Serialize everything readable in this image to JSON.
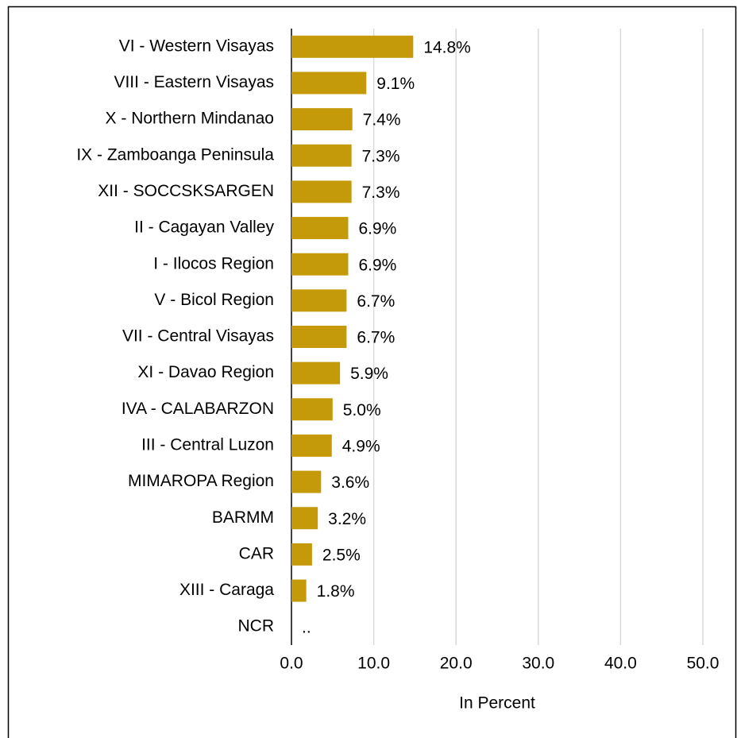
{
  "chart_data": {
    "type": "barh",
    "categories": [
      "VI - Western Visayas",
      "VIII - Eastern Visayas",
      "X - Northern Mindanao",
      "IX - Zamboanga Peninsula",
      "XII - SOCCSKSARGEN",
      "II - Cagayan Valley",
      "I - Ilocos Region",
      "V - Bicol Region",
      "VII - Central Visayas",
      "XI - Davao Region",
      "IVA - CALABARZON",
      "III - Central Luzon",
      "MIMAROPA Region",
      "BARMM",
      "CAR",
      "XIII - Caraga",
      "NCR"
    ],
    "values": [
      14.8,
      9.1,
      7.4,
      7.3,
      7.3,
      6.9,
      6.9,
      6.7,
      6.7,
      5.9,
      5.0,
      4.9,
      3.6,
      3.2,
      2.5,
      1.8,
      null
    ],
    "value_labels": [
      "14.8%",
      "9.1%",
      "7.4%",
      "7.3%",
      "7.3%",
      "6.9%",
      "6.9%",
      "6.7%",
      "6.7%",
      "5.9%",
      "5.0%",
      "4.9%",
      "3.6%",
      "3.2%",
      "2.5%",
      "1.8%",
      ".."
    ],
    "color": "#c59a0a",
    "xlim": [
      0,
      50
    ],
    "xticks": [
      {
        "value": 0,
        "label": "0.0"
      },
      {
        "value": 10,
        "label": "10.0"
      },
      {
        "value": 20,
        "label": "20.0"
      },
      {
        "value": 30,
        "label": "30.0"
      },
      {
        "value": 40,
        "label": "40.0"
      },
      {
        "value": 50,
        "label": "50.0"
      }
    ],
    "xlabel": "In Percent",
    "grid": true
  }
}
